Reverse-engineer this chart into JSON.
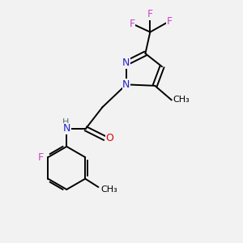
{
  "background_color": "#f2f2f2",
  "atom_colors": {
    "C": "#000000",
    "N": "#2222cc",
    "O": "#dd0000",
    "F": "#cc44cc",
    "H": "#507070"
  },
  "figsize": [
    3.0,
    3.0
  ],
  "dpi": 100
}
